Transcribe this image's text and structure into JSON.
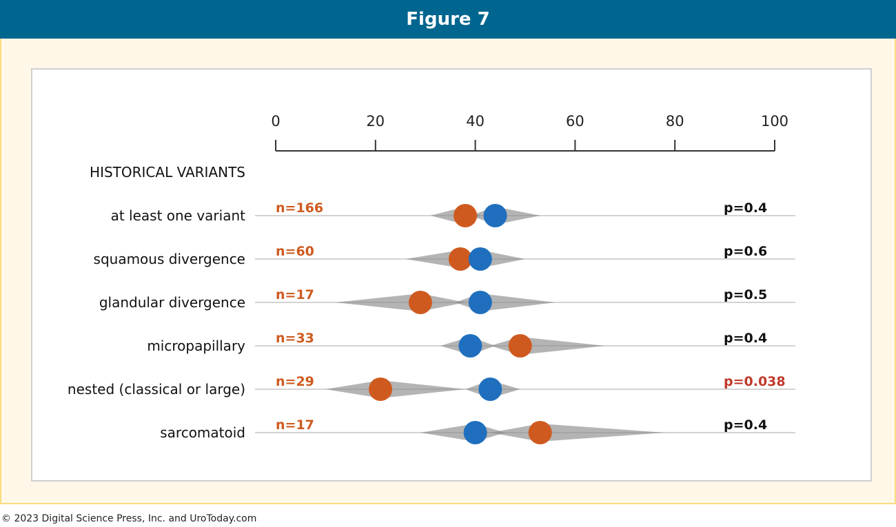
{
  "header": {
    "title": "Figure 7"
  },
  "footer": {
    "copyright": "© 2023 Digital Science Press, Inc. and UroToday.com"
  },
  "colors": {
    "orange": "#cf5a1f",
    "blue": "#1f6fbe",
    "violin": "#8c8c8c",
    "axis": "#333333",
    "sig": "#c0392b"
  },
  "chart_data": {
    "type": "scatter",
    "section_label": "HISTORICAL VARIANTS",
    "xlim": [
      0,
      100
    ],
    "ticks": [
      0,
      20,
      40,
      60,
      80,
      100
    ],
    "grid": false,
    "rows": [
      {
        "label": "at least one variant",
        "n": "n=166",
        "p": "p=0.4",
        "significant": false,
        "orange": 38,
        "blue": 44,
        "orange_range": [
          31,
          41
        ],
        "blue_range": [
          39,
          53
        ]
      },
      {
        "label": "squamous divergence",
        "n": "n=60",
        "p": "p=0.6",
        "significant": false,
        "orange": 37,
        "blue": 41,
        "orange_range": [
          26,
          40
        ],
        "blue_range": [
          38,
          50
        ]
      },
      {
        "label": "glandular divergence",
        "n": "n=17",
        "p": "p=0.5",
        "significant": false,
        "orange": 29,
        "blue": 41,
        "orange_range": [
          12,
          38
        ],
        "blue_range": [
          36,
          56
        ]
      },
      {
        "label": "micropapillary",
        "n": "n=33",
        "p": "p=0.4",
        "significant": false,
        "orange": 49,
        "blue": 39,
        "orange_range": [
          43,
          66
        ],
        "blue_range": [
          33,
          44
        ]
      },
      {
        "label": "nested (classical or large)",
        "n": "n=29",
        "p": "p=0.038",
        "significant": true,
        "orange": 21,
        "blue": 43,
        "orange_range": [
          10,
          38
        ],
        "blue_range": [
          38,
          49
        ]
      },
      {
        "label": "sarcomatoid",
        "n": "n=17",
        "p": "p=0.4",
        "significant": false,
        "orange": 53,
        "blue": 40,
        "orange_range": [
          43,
          78
        ],
        "blue_range": [
          29,
          46
        ]
      }
    ]
  }
}
